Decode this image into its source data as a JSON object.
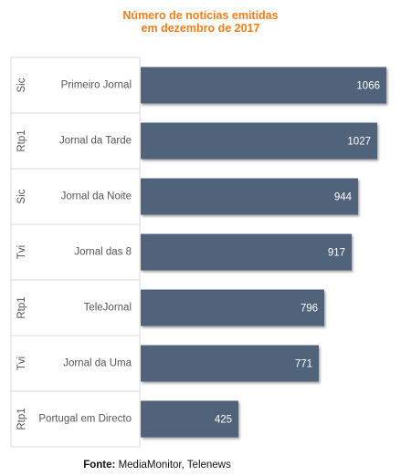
{
  "chart_data": {
    "type": "bar",
    "orientation": "horizontal",
    "title_lines": [
      "Número de notícias emitidas",
      "em dezembro de 2017"
    ],
    "groups": [
      "Sic",
      "Rtp1",
      "Sic",
      "Tvi",
      "Rtp1",
      "Tvi",
      "Rtp1"
    ],
    "categories": [
      "Primeiro Jornal",
      "Jornal da Tarde",
      "Jornal da Noite",
      "Jornal das 8",
      "TeleJornal",
      "Jornal da Uma",
      "Portugal em Directo"
    ],
    "values": [
      1066,
      1027,
      944,
      917,
      796,
      771,
      425
    ],
    "xlim": [
      0,
      1066
    ],
    "grid": false,
    "legend": "none",
    "bar_color": "#51647a",
    "title_color": "#f07e1a",
    "source_label": "Fonte:",
    "source_text": "MediaMonitor, Telenews"
  }
}
